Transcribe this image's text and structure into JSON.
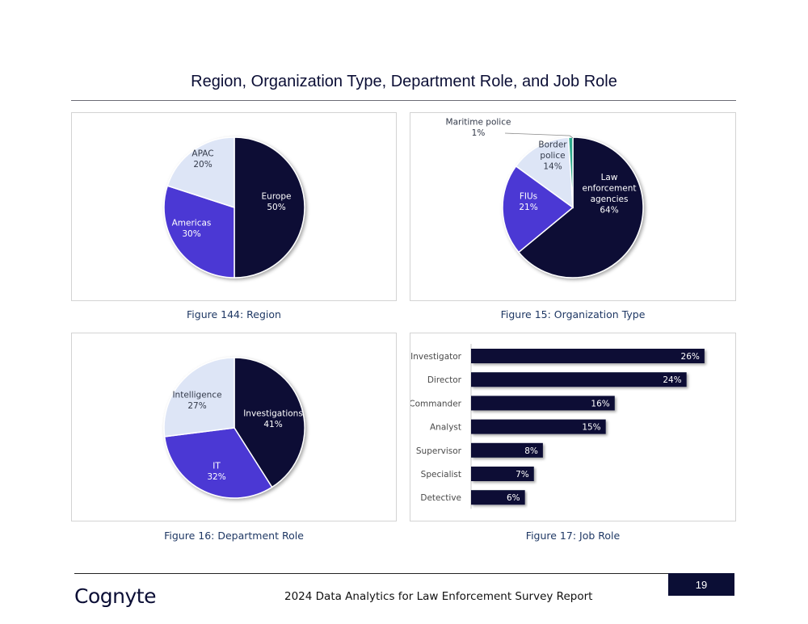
{
  "page": {
    "title": "Region, Organization Type, Department Role, and Job Role",
    "footer_report": "2024 Data Analytics for Law Enforcement Survey Report",
    "page_number": "19",
    "logo_text": "Cognyte"
  },
  "colors": {
    "navy": "#0b0e35",
    "purple": "#4b37d4",
    "light": "#dde5f6",
    "teal": "#2ea88c"
  },
  "captions": {
    "region": "Figure 144: Region",
    "org": "Figure 15: Organization Type",
    "dept": "Figure 16: Department Role",
    "job": "Figure 17: Job Role"
  },
  "chart_data": [
    {
      "id": "region",
      "type": "pie",
      "title": "Region",
      "slices": [
        {
          "label": "Europe",
          "value": 50,
          "text": "50%",
          "color": "#0b0e35"
        },
        {
          "label": "Americas",
          "value": 30,
          "text": "30%",
          "color": "#4b37d4"
        },
        {
          "label": "APAC",
          "value": 20,
          "text": "20%",
          "color": "#dde5f6"
        }
      ]
    },
    {
      "id": "org",
      "type": "pie",
      "title": "Organization Type",
      "slices": [
        {
          "label": "Law enforcement agencies",
          "value": 64,
          "text": "64%",
          "color": "#0b0e35"
        },
        {
          "label": "FIUs",
          "value": 21,
          "text": "21%",
          "color": "#4b37d4"
        },
        {
          "label": "Border police",
          "value": 14,
          "text": "14%",
          "color": "#dde5f6"
        },
        {
          "label": "Maritime police",
          "value": 1,
          "text": "1%",
          "color": "#2ea88c"
        }
      ]
    },
    {
      "id": "dept",
      "type": "pie",
      "title": "Department Role",
      "slices": [
        {
          "label": "Investigations",
          "value": 41,
          "text": "41%",
          "color": "#0b0e35"
        },
        {
          "label": "IT",
          "value": 32,
          "text": "32%",
          "color": "#4b37d4"
        },
        {
          "label": "Intelligence",
          "value": 27,
          "text": "27%",
          "color": "#dde5f6"
        }
      ]
    },
    {
      "id": "job",
      "type": "bar",
      "orientation": "horizontal",
      "title": "Job Role",
      "categories": [
        "Investigator",
        "Director",
        "Commander",
        "Analyst",
        "Supervisor",
        "Specialist",
        "Detective"
      ],
      "values": [
        26,
        24,
        16,
        15,
        8,
        7,
        6
      ],
      "labels": [
        "26%",
        "24%",
        "16%",
        "15%",
        "8%",
        "7%",
        "6%"
      ],
      "xlim": [
        0,
        27
      ]
    }
  ]
}
